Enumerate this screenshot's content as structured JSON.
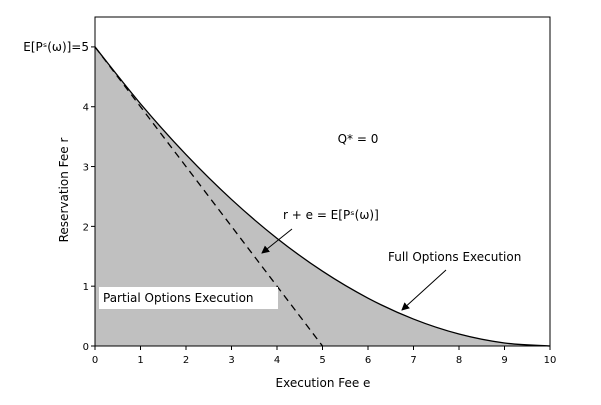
{
  "chart_data": {
    "type": "area",
    "x_label": "Execution Fee e",
    "y_label": "Reservation Fee r",
    "x": [
      0,
      1,
      2,
      3,
      4,
      5,
      6,
      7,
      8,
      9,
      10
    ],
    "series": [
      {
        "name": "Full Options Execution",
        "color": "#c0c0c0",
        "values": [
          5,
          4.05,
          3.2,
          2.45,
          1.8,
          1.25,
          0.8,
          0.45,
          0.2,
          0.05,
          0
        ]
      },
      {
        "name": "r + e = E[Pˢ(ω)]",
        "color": "#000000",
        "x": [
          0,
          5
        ],
        "values": [
          5,
          0
        ],
        "style": "dashed"
      }
    ],
    "annotations": [
      "Q* = 0",
      "Partial Options Execution"
    ],
    "xlim": [
      0,
      10
    ],
    "xticks": [
      0,
      1,
      2,
      3,
      4,
      5,
      6,
      7,
      8,
      9,
      10
    ],
    "ylim": [
      0,
      5.5
    ],
    "yticks": [
      0,
      1,
      2,
      3,
      4,
      {
        "value": 5,
        "label": "E[Pˢ(ω)]=5"
      }
    ]
  }
}
